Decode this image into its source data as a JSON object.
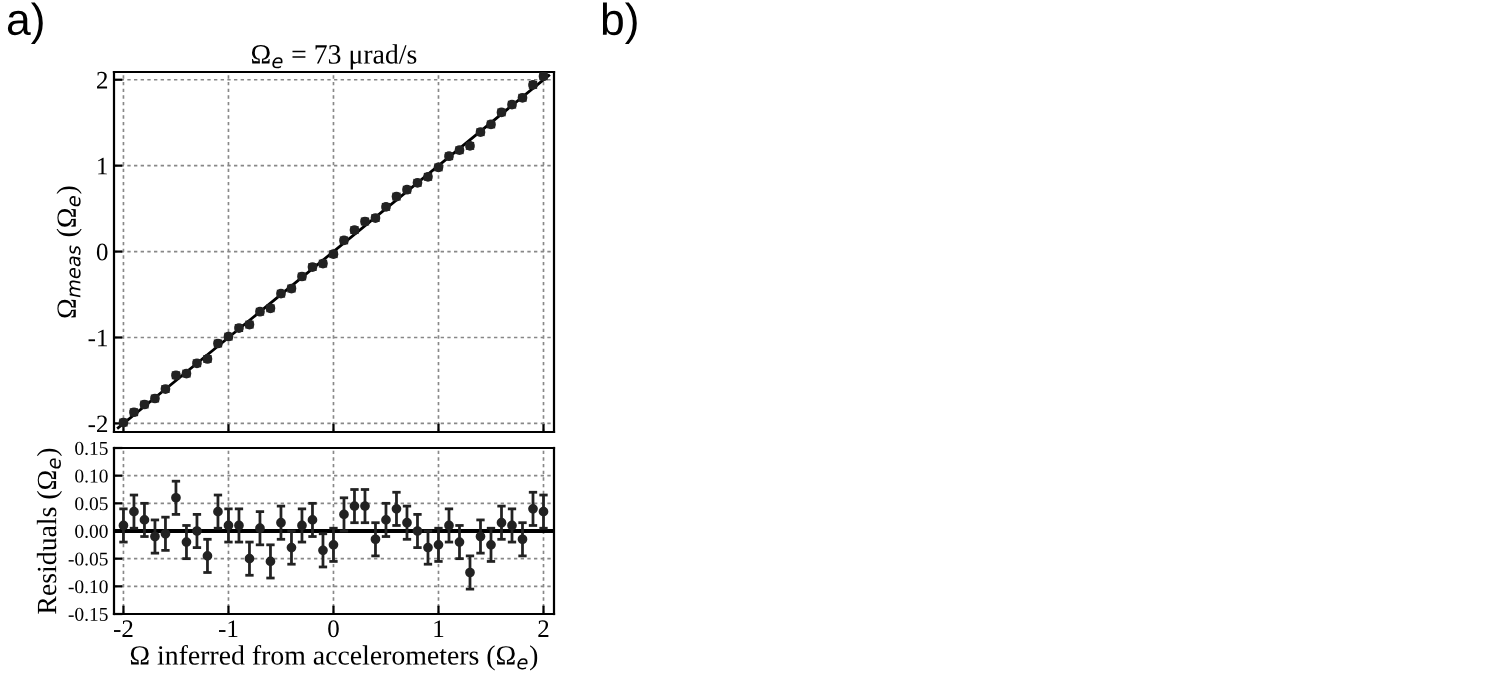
{
  "chart_data": [
    {
      "type": "scatter",
      "title": "Ω$_{e}$ = 73 μrad/s",
      "ylabel": "Ω$_{meas}$ (Ω$_{e}$)",
      "annotations": [
        "a)",
        "b)"
      ],
      "x": [
        -2.0,
        -1.9,
        -1.8,
        -1.7,
        -1.6,
        -1.5,
        -1.4,
        -1.3,
        -1.2,
        -1.1,
        -1.0,
        -0.9,
        -0.8,
        -0.7,
        -0.6,
        -0.5,
        -0.4,
        -0.3,
        -0.2,
        -0.1,
        0.0,
        0.1,
        0.2,
        0.3,
        0.4,
        0.5,
        0.6,
        0.7,
        0.8,
        0.9,
        1.0,
        1.1,
        1.2,
        1.3,
        1.4,
        1.5,
        1.6,
        1.7,
        1.8,
        1.9,
        2.0
      ],
      "series": [
        {
          "color": "#222222",
          "values": [
            -1.99,
            -1.87,
            -1.78,
            -1.71,
            -1.6,
            -1.44,
            -1.42,
            -1.3,
            -1.25,
            -1.07,
            -0.99,
            -0.89,
            -0.85,
            -0.7,
            -0.66,
            -0.49,
            -0.43,
            -0.29,
            -0.18,
            -0.14,
            -0.03,
            0.13,
            0.25,
            0.35,
            0.39,
            0.52,
            0.64,
            0.72,
            0.8,
            0.87,
            0.98,
            1.11,
            1.18,
            1.23,
            1.39,
            1.48,
            1.62,
            1.71,
            1.79,
            1.94,
            2.04
          ],
          "errors": [
            0.03,
            0.03,
            0.03,
            0.03,
            0.03,
            0.03,
            0.03,
            0.03,
            0.03,
            0.03,
            0.03,
            0.03,
            0.03,
            0.03,
            0.03,
            0.03,
            0.03,
            0.03,
            0.03,
            0.03,
            0.03,
            0.03,
            0.03,
            0.03,
            0.03,
            0.03,
            0.03,
            0.03,
            0.03,
            0.03,
            0.03,
            0.03,
            0.03,
            0.03,
            0.03,
            0.03,
            0.03,
            0.03,
            0.03,
            0.03,
            0.03
          ]
        },
        {
          "type": "line",
          "color": "#000000",
          "marker": "none",
          "x": [
            -2.05,
            2.05
          ],
          "values": [
            -2.05,
            2.05
          ]
        }
      ],
      "xlim": [
        -2.09,
        2.1
      ],
      "xticks": [
        -2,
        -1,
        0,
        1,
        2
      ],
      "ylim": [
        -2.1,
        2.09
      ],
      "yticks": [
        -2,
        -1,
        0,
        1,
        2
      ],
      "tick_labels": "y",
      "grid": true,
      "marker": "circle"
    },
    {
      "type": "scatter",
      "xlabel": "Ω inferred from accelerometers (Ω$_{e}$)",
      "ylabel": "Residuals (Ω$_{e}$)",
      "x": [
        -2.0,
        -1.9,
        -1.8,
        -1.7,
        -1.6,
        -1.5,
        -1.4,
        -1.3,
        -1.2,
        -1.1,
        -1.0,
        -0.9,
        -0.8,
        -0.7,
        -0.6,
        -0.5,
        -0.4,
        -0.3,
        -0.2,
        -0.1,
        0.0,
        0.1,
        0.2,
        0.3,
        0.4,
        0.5,
        0.6,
        0.7,
        0.8,
        0.9,
        1.0,
        1.1,
        1.2,
        1.3,
        1.4,
        1.5,
        1.6,
        1.7,
        1.8,
        1.9,
        2.0
      ],
      "series": [
        {
          "color": "#222222",
          "values": [
            0.01,
            0.035,
            0.02,
            -0.01,
            -0.005,
            0.06,
            -0.02,
            0.0,
            -0.045,
            0.035,
            0.01,
            0.01,
            -0.05,
            0.005,
            -0.055,
            0.015,
            -0.03,
            0.01,
            0.02,
            -0.035,
            -0.025,
            0.03,
            0.045,
            0.045,
            -0.015,
            0.02,
            0.04,
            0.015,
            0.0,
            -0.03,
            -0.025,
            0.01,
            -0.02,
            -0.075,
            -0.01,
            -0.025,
            0.015,
            0.01,
            -0.015,
            0.04,
            0.035
          ],
          "errors": [
            0.03,
            0.03,
            0.03,
            0.03,
            0.03,
            0.03,
            0.03,
            0.03,
            0.03,
            0.03,
            0.03,
            0.03,
            0.03,
            0.03,
            0.03,
            0.03,
            0.03,
            0.03,
            0.03,
            0.03,
            0.03,
            0.03,
            0.03,
            0.03,
            0.03,
            0.03,
            0.03,
            0.03,
            0.03,
            0.03,
            0.03,
            0.03,
            0.03,
            0.03,
            0.03,
            0.03,
            0.03,
            0.03,
            0.03,
            0.03,
            0.03
          ]
        }
      ],
      "ref_lines": [
        {
          "axis": "y",
          "value": 0,
          "color": "#000000",
          "line_style": "solid"
        }
      ],
      "xlim": [
        -2.09,
        2.1
      ],
      "xticks": [
        -2,
        -1,
        0,
        1,
        2
      ],
      "ylim": [
        -0.15,
        0.15
      ],
      "yticks": [
        {
          "value": 0.15,
          "label": "0.15"
        },
        {
          "value": 0.1,
          "label": "0.10"
        },
        {
          "value": 0.05,
          "label": "0.05"
        },
        {
          "value": 0,
          "label": "0.00"
        },
        {
          "value": -0.05,
          "label": "-0.05"
        },
        {
          "value": -0.1,
          "label": "-0.10"
        },
        {
          "value": -0.15,
          "label": "-0.15"
        }
      ],
      "grid": true,
      "marker": "circle"
    }
  ]
}
